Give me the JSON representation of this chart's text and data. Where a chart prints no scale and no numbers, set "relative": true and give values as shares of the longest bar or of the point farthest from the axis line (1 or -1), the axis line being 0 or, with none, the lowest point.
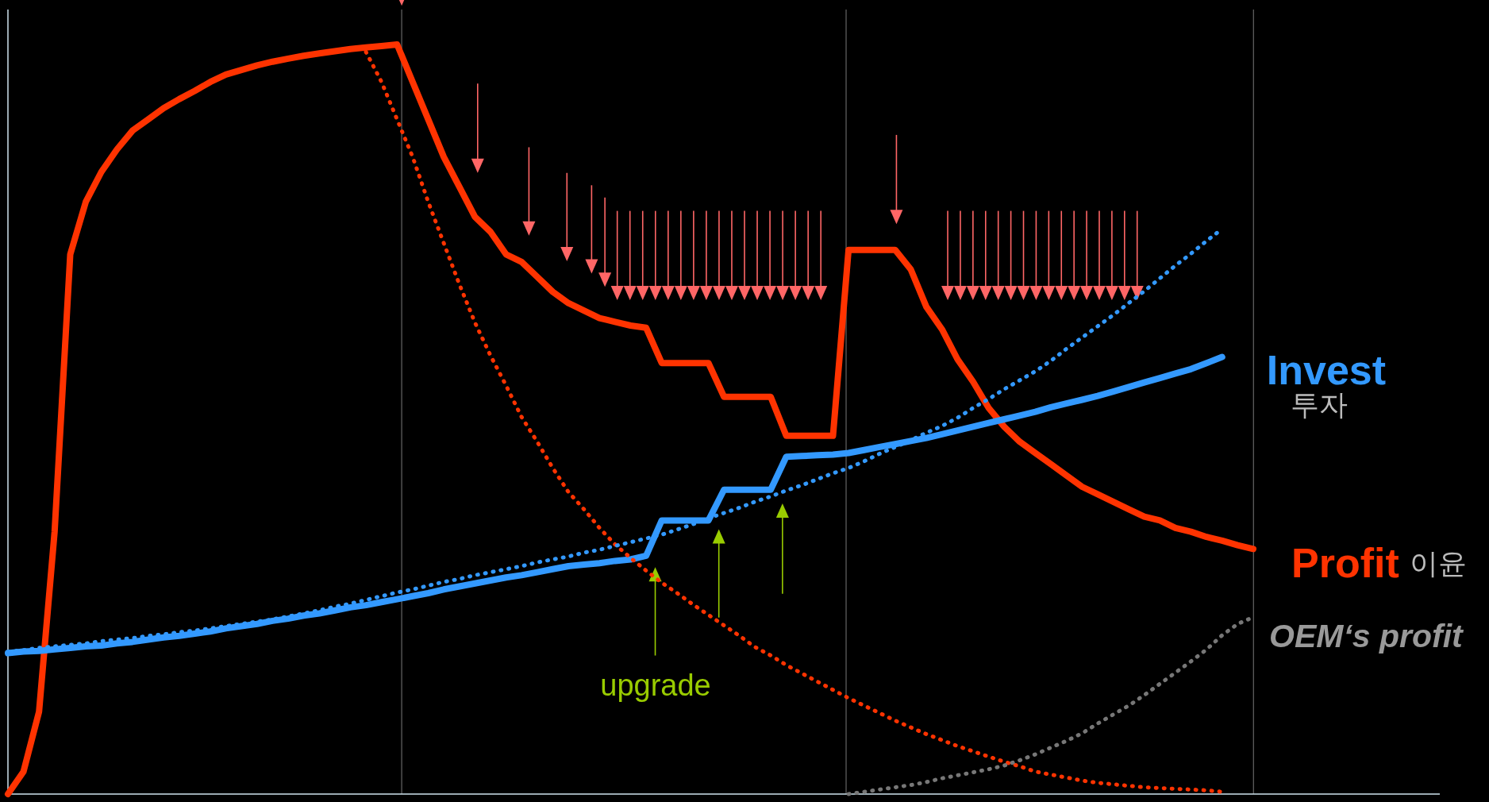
{
  "chart_data": {
    "type": "line",
    "relative": true,
    "grid": false,
    "categories": [
      null,
      null,
      null,
      null,
      null,
      null,
      null,
      null,
      null,
      null,
      null,
      null,
      null,
      null,
      null,
      null,
      null,
      null,
      null,
      null,
      null,
      null,
      null,
      null,
      null,
      null,
      null,
      null,
      null,
      null,
      null,
      null,
      null,
      null,
      null,
      null,
      null,
      null,
      null,
      null,
      null,
      null,
      null,
      null,
      null,
      null,
      null,
      null,
      null,
      null,
      null,
      null,
      null,
      null,
      null,
      null,
      null,
      null,
      null,
      null,
      null,
      null,
      null,
      null,
      null,
      null,
      null,
      null,
      null,
      null,
      null,
      null,
      null,
      null,
      null,
      null,
      null,
      null,
      null,
      null,
      null
    ],
    "series": [
      {
        "name": "Profit",
        "color": "#ff3300",
        "line_style": "solid",
        "values": [
          0.0,
          0.03,
          0.11,
          0.35,
          0.72,
          0.79,
          0.83,
          0.86,
          0.885,
          0.9,
          0.915,
          0.927,
          0.938,
          0.95,
          0.96,
          0.966,
          0.972,
          0.977,
          0.981,
          0.985,
          0.988,
          0.991,
          0.994,
          0.996,
          0.998,
          1.0,
          0.95,
          0.9,
          0.85,
          0.81,
          0.77,
          0.75,
          0.72,
          0.71,
          0.69,
          0.67,
          0.655,
          0.645,
          0.635,
          0.63,
          0.625,
          0.622,
          0.575,
          0.575,
          0.575,
          0.575,
          0.53,
          0.53,
          0.53,
          0.53,
          0.478,
          0.478,
          0.478,
          0.478,
          0.726,
          0.726,
          0.726,
          0.726,
          0.7,
          0.65,
          0.62,
          0.58,
          0.55,
          0.515,
          0.49,
          0.47,
          0.455,
          0.44,
          0.425,
          0.41,
          0.4,
          0.39,
          0.38,
          0.37,
          0.365,
          0.355,
          0.35,
          0.343,
          0.338,
          0.332,
          0.327
        ]
      },
      {
        "name": "Invest",
        "color": "#3399ff",
        "line_style": "solid",
        "values": [
          0.188,
          0.19,
          0.191,
          0.193,
          0.195,
          0.197,
          0.198,
          0.201,
          0.203,
          0.206,
          0.209,
          0.211,
          0.214,
          0.217,
          0.221,
          0.224,
          0.227,
          0.231,
          0.234,
          0.238,
          0.241,
          0.245,
          0.249,
          0.252,
          0.256,
          0.26,
          0.264,
          0.268,
          0.273,
          0.277,
          0.281,
          0.285,
          0.289,
          0.292,
          0.296,
          0.3,
          0.304,
          0.306,
          0.308,
          0.311,
          0.313,
          0.318,
          0.365,
          0.365,
          0.365,
          0.365,
          0.406,
          0.406,
          0.406,
          0.406,
          0.45,
          0.451,
          0.452,
          0.453,
          0.455,
          0.459,
          0.463,
          0.467,
          0.471,
          0.475,
          0.48,
          0.485,
          0.49,
          0.495,
          0.5,
          0.505,
          0.51,
          0.516,
          0.521,
          0.526,
          0.531,
          0.537,
          0.543,
          0.549,
          0.555,
          0.561,
          0.567,
          0.575,
          0.583,
          null,
          null
        ]
      },
      {
        "color": "#ff3300",
        "line_style": "dotted",
        "values": [
          null,
          null,
          null,
          null,
          null,
          null,
          null,
          null,
          null,
          null,
          null,
          null,
          null,
          null,
          null,
          null,
          null,
          null,
          null,
          null,
          null,
          null,
          null,
          0.99,
          0.95,
          0.9,
          0.85,
          0.79,
          0.735,
          0.68,
          0.629,
          0.585,
          0.545,
          0.503,
          0.47,
          0.435,
          0.403,
          0.38,
          0.355,
          0.333,
          0.315,
          0.298,
          0.282,
          0.268,
          0.253,
          0.239,
          0.225,
          0.211,
          0.196,
          0.185,
          0.172,
          0.161,
          0.15,
          0.139,
          0.128,
          0.118,
          0.108,
          0.098,
          0.089,
          0.08,
          0.072,
          0.064,
          0.057,
          0.05,
          0.043,
          0.037,
          0.03,
          0.026,
          0.022,
          0.018,
          0.015,
          0.013,
          0.011,
          0.009,
          0.008,
          0.007,
          0.006,
          0.005,
          0.003,
          null,
          null
        ]
      },
      {
        "color": "#3399ff",
        "line_style": "dotted",
        "values": [
          0.19,
          0.192,
          0.195,
          0.197,
          0.199,
          0.201,
          0.204,
          0.206,
          0.208,
          0.211,
          0.213,
          0.216,
          0.218,
          0.221,
          0.224,
          0.227,
          0.23,
          0.233,
          0.237,
          0.241,
          0.245,
          0.25,
          0.254,
          0.259,
          0.264,
          0.269,
          0.273,
          0.278,
          0.283,
          0.287,
          0.292,
          0.296,
          0.3,
          0.304,
          0.309,
          0.313,
          0.317,
          0.322,
          0.326,
          0.331,
          0.336,
          0.341,
          0.346,
          0.353,
          0.36,
          0.368,
          0.375,
          0.382,
          0.39,
          0.397,
          0.405,
          0.412,
          0.42,
          0.428,
          0.435,
          0.444,
          0.454,
          0.463,
          0.472,
          0.482,
          0.491,
          0.502,
          0.515,
          0.527,
          0.54,
          0.552,
          0.564,
          0.578,
          0.594,
          0.609,
          0.624,
          0.639,
          0.655,
          0.671,
          0.688,
          0.705,
          0.721,
          0.738,
          0.754,
          null,
          null
        ]
      },
      {
        "name": "OEM‘s profit",
        "color": "#777777",
        "line_style": "dotted",
        "values": [
          null,
          null,
          null,
          null,
          null,
          null,
          null,
          null,
          null,
          null,
          null,
          null,
          null,
          null,
          null,
          null,
          null,
          null,
          null,
          null,
          null,
          null,
          null,
          null,
          null,
          null,
          null,
          null,
          null,
          null,
          null,
          null,
          null,
          null,
          null,
          null,
          null,
          null,
          null,
          null,
          null,
          null,
          null,
          null,
          null,
          null,
          null,
          null,
          null,
          null,
          null,
          null,
          null,
          null,
          0.0,
          0.003,
          0.006,
          0.009,
          0.012,
          0.016,
          0.021,
          0.025,
          0.029,
          0.033,
          0.038,
          0.045,
          0.053,
          0.062,
          0.071,
          0.081,
          0.094,
          0.106,
          0.118,
          0.132,
          0.147,
          0.162,
          0.177,
          0.193,
          0.212,
          0.227,
          0.236
        ]
      }
    ],
    "legend": false,
    "annotations": [
      "투자",
      "이윤",
      "upgrade"
    ]
  }
}
